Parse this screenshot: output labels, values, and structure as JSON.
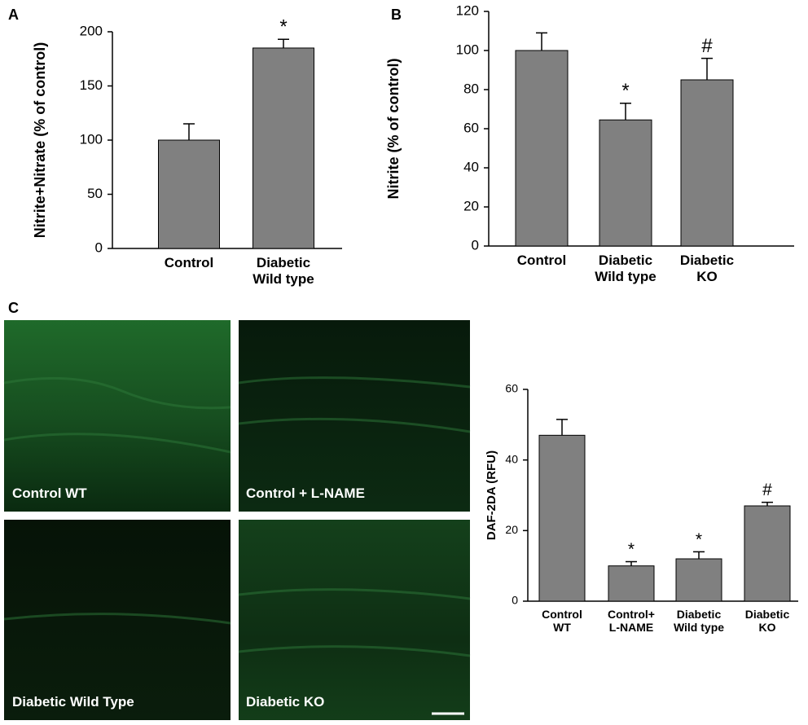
{
  "panels": [
    "A",
    "B",
    "C"
  ],
  "images": [
    {
      "label": "Control WT"
    },
    {
      "label": "Control + L-NAME"
    },
    {
      "label": "Diabetic Wild Type"
    },
    {
      "label": "Diabetic KO"
    }
  ],
  "chart_data": [
    {
      "type": "bar",
      "y_label": "Nitrite+Nitrate (% of control)",
      "categories": [
        "Control",
        "Diabetic\nWild type"
      ],
      "values": [
        100,
        185
      ],
      "errors": [
        15,
        8
      ],
      "annotations": [
        null,
        "*"
      ],
      "color": "#808080",
      "ylim": [
        0,
        200
      ],
      "yticks": [
        0,
        50,
        100,
        150,
        200
      ]
    },
    {
      "type": "bar",
      "y_label": "Nitrite (% of control)",
      "categories": [
        "Control",
        "Diabetic\nWild type",
        "Diabetic\nKO"
      ],
      "values": [
        100,
        64.5,
        85
      ],
      "errors": [
        9,
        8.5,
        11
      ],
      "annotations": [
        null,
        "*",
        "#"
      ],
      "color": "#808080",
      "ylim": [
        0,
        120
      ],
      "yticks": [
        0,
        20,
        40,
        60,
        80,
        100,
        120
      ]
    },
    {
      "type": "bar",
      "y_label": "DAF-2DA (RFU)",
      "categories": [
        "Control\nWT",
        "Control+\nL-NAME",
        "Diabetic\nWild type",
        "Diabetic\nKO"
      ],
      "values": [
        47,
        10,
        12,
        27
      ],
      "errors": [
        4.5,
        1.2,
        2,
        1
      ],
      "annotations": [
        null,
        "*",
        "*",
        "#"
      ],
      "color": "#808080",
      "ylim": [
        0,
        60
      ],
      "yticks": [
        0,
        20,
        40,
        60
      ]
    }
  ]
}
